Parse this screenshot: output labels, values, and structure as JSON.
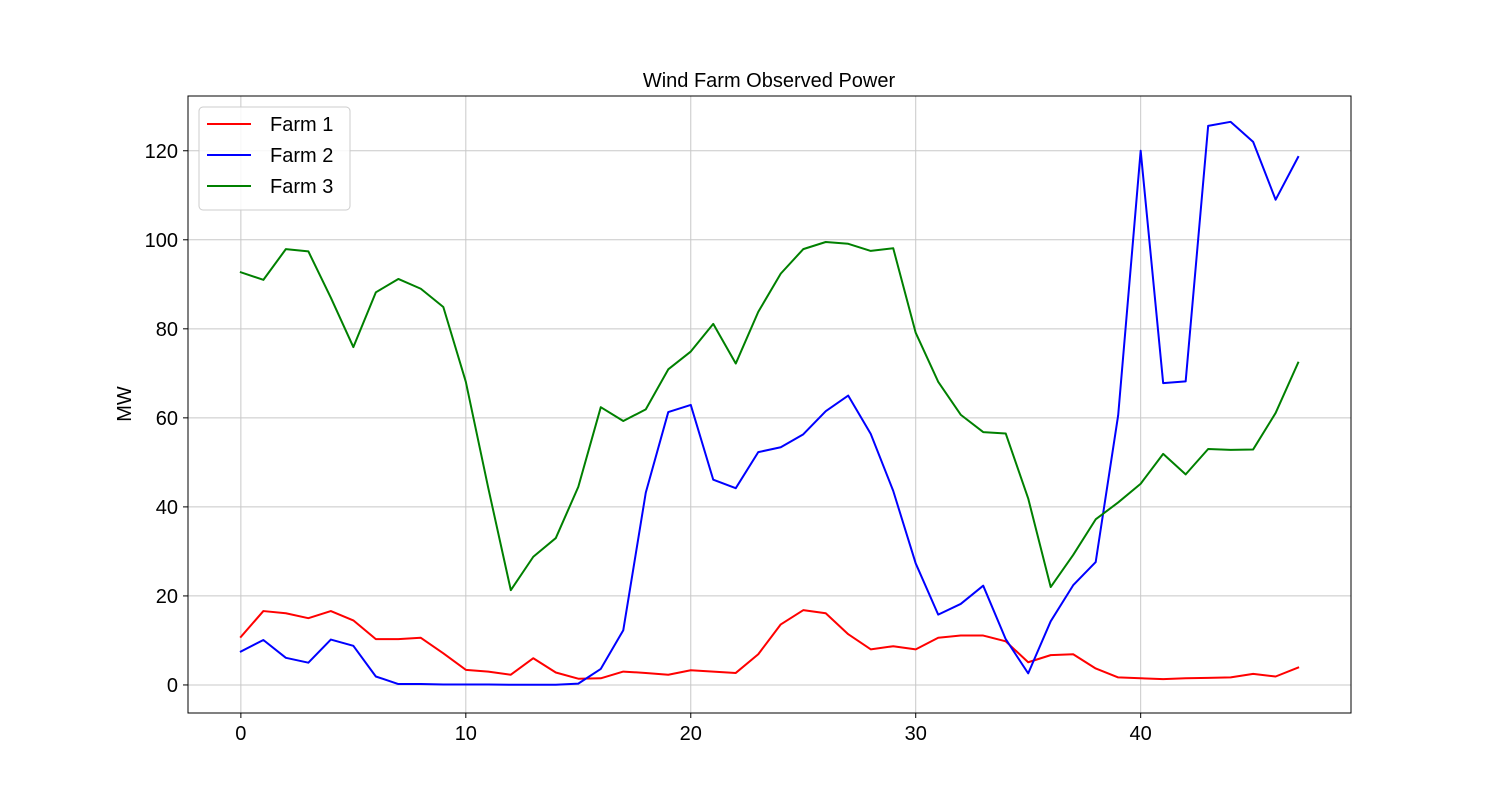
{
  "chart_data": {
    "type": "line",
    "title": "Wind Farm Observed Power",
    "xlabel": "",
    "ylabel": "MW",
    "xlim": [
      -2.35,
      49.35
    ],
    "ylim": [
      -6.3,
      132.3
    ],
    "xticks": [
      0,
      10,
      20,
      30,
      40
    ],
    "yticks": [
      0,
      20,
      40,
      60,
      80,
      100,
      120
    ],
    "grid": true,
    "legend_position": "upper left",
    "x": [
      0,
      1,
      2,
      3,
      4,
      5,
      6,
      7,
      8,
      9,
      10,
      11,
      12,
      13,
      14,
      15,
      16,
      17,
      18,
      19,
      20,
      21,
      22,
      23,
      24,
      25,
      26,
      27,
      28,
      29,
      30,
      31,
      32,
      33,
      34,
      35,
      36,
      37,
      38,
      39,
      40,
      41,
      42,
      43,
      44,
      45,
      46,
      47
    ],
    "series": [
      {
        "name": "Farm 1",
        "color": "#ff0000",
        "values": [
          10.8,
          16.6,
          16.1,
          15.0,
          16.6,
          14.5,
          10.3,
          10.3,
          10.6,
          7.1,
          3.4,
          3.0,
          2.3,
          6.0,
          2.8,
          1.4,
          1.5,
          3.0,
          2.7,
          2.3,
          3.3,
          3.0,
          2.7,
          6.9,
          13.6,
          16.8,
          16.1,
          11.4,
          8.0,
          8.7,
          8.0,
          10.6,
          11.1,
          11.1,
          9.8,
          5.1,
          6.7,
          6.9,
          3.7,
          1.7,
          1.5,
          1.3,
          1.5,
          1.6,
          1.7,
          2.5,
          1.9,
          3.9
        ]
      },
      {
        "name": "Farm 2",
        "color": "#0000ff",
        "values": [
          7.5,
          10.1,
          6.1,
          5.0,
          10.2,
          8.8,
          1.9,
          0.2,
          0.2,
          0.1,
          0.1,
          0.1,
          0.05,
          0.05,
          0.05,
          0.3,
          3.6,
          12.3,
          43.2,
          61.3,
          62.9,
          46.1,
          44.2,
          52.3,
          53.4,
          56.3,
          61.5,
          65.0,
          56.4,
          43.6,
          27.3,
          15.8,
          18.2,
          22.3,
          10.3,
          2.6,
          14.3,
          22.4,
          27.6,
          60.6,
          120.0,
          67.8,
          68.2,
          125.6,
          126.5,
          122.0,
          109.0,
          118.6
        ]
      },
      {
        "name": "Farm 3",
        "color": "#008000",
        "values": [
          92.7,
          91.0,
          97.9,
          97.4,
          87.0,
          75.9,
          88.2,
          91.2,
          89.0,
          84.9,
          68.1,
          44.2,
          21.3,
          28.8,
          33.0,
          44.5,
          62.4,
          59.3,
          61.9,
          70.9,
          74.9,
          81.1,
          72.2,
          83.8,
          92.4,
          97.9,
          99.5,
          99.1,
          97.5,
          98.1,
          79.1,
          68.1,
          60.7,
          56.8,
          56.5,
          41.9,
          22.0,
          29.2,
          37.2,
          41.0,
          45.2,
          51.9,
          47.3,
          53.0,
          52.8,
          52.9,
          61.1,
          72.4
        ]
      }
    ]
  }
}
